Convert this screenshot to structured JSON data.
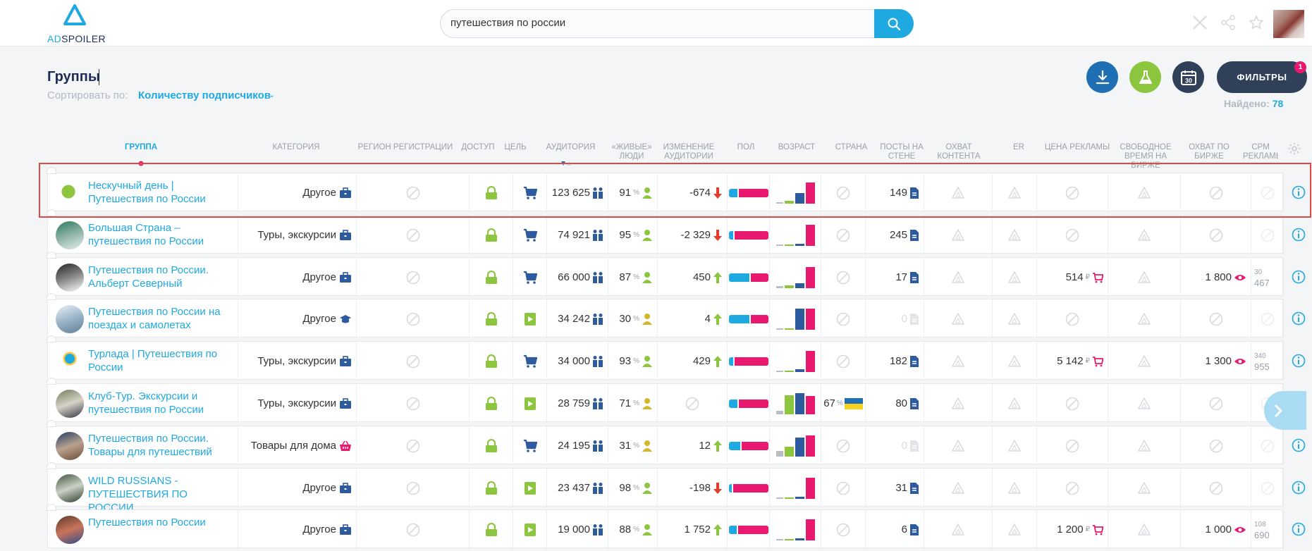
{
  "header": {
    "logo_ad": "AD",
    "logo_spoiler": "SPOILER",
    "search_value": "путешествия по россии",
    "icons": [
      "close-icon",
      "share-icon",
      "star-icon",
      "avatar"
    ]
  },
  "page": {
    "title": "Группы",
    "sort_label": "Сортировать по:",
    "sort_value": "Количеству подписчиков",
    "found_label": "Найдено:",
    "found_count": "78",
    "filters_label": "ФИЛЬТРЫ",
    "filters_badge": "1",
    "actions": [
      {
        "name": "download-icon",
        "color": "#1f6fb5"
      },
      {
        "name": "flask-icon",
        "color": "#8cc63f"
      },
      {
        "name": "calendar-30-icon",
        "color": "#2f4058",
        "label": "30"
      }
    ]
  },
  "columns": [
    "Группа",
    "Категория",
    "Регион регистрации",
    "Доступ",
    "Цель",
    "Аудитория",
    "«Живые» люди",
    "Изменение аудитории",
    "Пол",
    "Возраст",
    "Страна",
    "Посты на стене",
    "Охват контента",
    "ER",
    "Цена рекламы",
    "Свободное время на бирже",
    "Охват по бирже",
    "CPM рекламы"
  ],
  "rows": [
    {
      "name": "Нескучный день | Путешествия по России",
      "category": "Другое",
      "cat_icon": "briefcase-icon",
      "goal": "cart-icon",
      "audience": "123 625",
      "live": "91",
      "live_color": "#8cc63f",
      "change": "-674",
      "dir": "down",
      "gender_m": 0.22,
      "ages": [
        0.05,
        0.12,
        0.5,
        1
      ],
      "country": "",
      "posts": "149",
      "price": "",
      "reach": "",
      "cpm": "",
      "cpm2": ""
    },
    {
      "name": "Большая Страна – путешествия по России",
      "category": "Туры, экскурсии",
      "cat_icon": "briefcase-icon",
      "goal": "cart-icon",
      "audience": "74 921",
      "live": "95",
      "live_color": "#8cc63f",
      "change": "-2 329",
      "dir": "down",
      "gender_m": 0.12,
      "ages": [
        0.05,
        0.06,
        0.08,
        1
      ],
      "country": "",
      "posts": "245",
      "price": "",
      "reach": "",
      "cpm": "",
      "cpm2": ""
    },
    {
      "name": "Путешествия по России. Альберт Северный",
      "category": "Другое",
      "cat_icon": "briefcase-icon",
      "goal": "cart-icon",
      "audience": "66 000",
      "live": "87",
      "live_color": "#8cc63f",
      "change": "450",
      "dir": "up",
      "gender_m": 0.52,
      "ages": [
        0.08,
        0.12,
        0.22,
        1
      ],
      "country": "",
      "posts": "17",
      "price": "514",
      "reach": "1 800",
      "cpm": "467",
      "cpm2": "30"
    },
    {
      "name": "Путешествия по России на поездах и самолетах",
      "category": "Другое",
      "cat_icon": "graduation-icon",
      "goal": "video-icon",
      "audience": "34 242",
      "live": "30",
      "live_color": "#d4b62a",
      "change": "4",
      "dir": "up",
      "gender_m": 0.52,
      "ages": [
        0.03,
        0.04,
        1,
        1
      ],
      "country": "",
      "posts": "0",
      "price": "",
      "reach": "",
      "cpm": "",
      "cpm2": ""
    },
    {
      "name": "Турлада | Путешествия по России",
      "category": "Туры, экскурсии",
      "cat_icon": "briefcase-icon",
      "goal": "cart-icon",
      "audience": "34 000",
      "live": "93",
      "live_color": "#8cc63f",
      "change": "429",
      "dir": "up",
      "gender_m": 0.12,
      "ages": [
        0.05,
        0.06,
        0.12,
        1
      ],
      "country": "",
      "posts": "182",
      "price": "5 142",
      "reach": "1 300",
      "cpm": "955",
      "cpm2": "340"
    },
    {
      "name": "Клуб-Тур. Экскурсии и путешествия по России",
      "category": "Туры, экскурсии",
      "cat_icon": "briefcase-icon",
      "goal": "video-icon",
      "audience": "28 759",
      "live": "71",
      "live_color": "#d4b62a",
      "change": "",
      "dir": "none",
      "gender_m": 0.22,
      "ages": [
        0.15,
        0.9,
        1,
        0.85
      ],
      "country": "67",
      "posts": "80",
      "price": "",
      "reach": "",
      "cpm": "",
      "cpm2": ""
    },
    {
      "name": "Путешествия по России. Товары для путешествий",
      "category": "Товары для дома",
      "cat_icon": "basket-icon",
      "goal": "cart-icon",
      "audience": "24 195",
      "live": "31",
      "live_color": "#d4b62a",
      "change": "12",
      "dir": "up",
      "gender_m": 0.3,
      "ages": [
        0.25,
        0.45,
        0.9,
        1
      ],
      "country": "",
      "posts": "0",
      "price": "",
      "reach": "",
      "cpm": "",
      "cpm2": ""
    },
    {
      "name": "WILD RUSSIANS - ПУТЕШЕСТВИЯ ПО РОССИИ",
      "category": "Другое",
      "cat_icon": "briefcase-icon",
      "goal": "video-icon",
      "audience": "23 437",
      "live": "98",
      "live_color": "#8cc63f",
      "change": "-198",
      "dir": "down",
      "gender_m": 0.08,
      "ages": [
        0.02,
        0.03,
        0.1,
        1
      ],
      "country": "",
      "posts": "31",
      "price": "",
      "reach": "",
      "cpm": "",
      "cpm2": ""
    },
    {
      "name": "Путешествия по России",
      "category": "Другое",
      "cat_icon": "briefcase-icon",
      "goal": "video-icon",
      "audience": "19 000",
      "live": "88",
      "live_color": "#8cc63f",
      "change": "1 752",
      "dir": "up",
      "gender_m": 0.2,
      "ages": [
        0.05,
        0.06,
        0.1,
        1
      ],
      "country": "",
      "posts": "6",
      "price": "1 200",
      "reach": "1 000",
      "cpm": "690",
      "cpm2": "108"
    }
  ],
  "colors": {
    "accent": "#1fa9e1",
    "navy": "#2f4058",
    "green": "#8cc63f",
    "pink": "#e8196f",
    "red": "#e53b2c",
    "darkblue": "#2e5a9e"
  },
  "currency": "₽"
}
